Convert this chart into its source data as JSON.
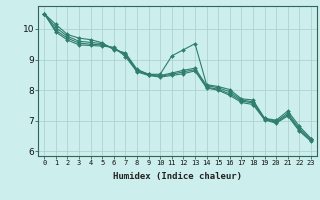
{
  "xlabel": "Humidex (Indice chaleur)",
  "background_color": "#cceeed",
  "grid_color": "#aacccc",
  "line_color": "#2e7d6e",
  "xlim": [
    -0.5,
    23.5
  ],
  "ylim": [
    5.85,
    10.75
  ],
  "xticks": [
    0,
    1,
    2,
    3,
    4,
    5,
    6,
    7,
    8,
    9,
    10,
    11,
    12,
    13,
    14,
    15,
    16,
    17,
    18,
    19,
    20,
    21,
    22,
    23
  ],
  "yticks": [
    6,
    7,
    8,
    9,
    10
  ],
  "series": [
    [
      10.5,
      10.15,
      9.82,
      9.7,
      9.65,
      9.55,
      9.32,
      9.22,
      8.68,
      8.52,
      8.52,
      9.12,
      9.32,
      9.52,
      8.18,
      8.12,
      8.02,
      7.72,
      7.68,
      7.08,
      7.02,
      7.32,
      6.82,
      6.42
    ],
    [
      10.5,
      10.05,
      9.76,
      9.6,
      9.56,
      9.52,
      9.36,
      9.18,
      8.65,
      8.52,
      8.48,
      8.56,
      8.65,
      8.72,
      8.15,
      8.08,
      7.95,
      7.68,
      7.62,
      7.08,
      6.98,
      7.25,
      6.75,
      6.4
    ],
    [
      10.5,
      9.96,
      9.7,
      9.54,
      9.5,
      9.48,
      9.38,
      9.15,
      8.62,
      8.5,
      8.45,
      8.52,
      8.6,
      8.67,
      8.1,
      8.03,
      7.88,
      7.65,
      7.58,
      7.05,
      6.95,
      7.2,
      6.7,
      6.36
    ],
    [
      10.5,
      9.9,
      9.64,
      9.48,
      9.46,
      9.44,
      9.4,
      9.1,
      8.6,
      8.48,
      8.43,
      8.48,
      8.54,
      8.63,
      8.07,
      8.0,
      7.83,
      7.6,
      7.53,
      7.03,
      6.92,
      7.16,
      6.66,
      6.33
    ]
  ]
}
